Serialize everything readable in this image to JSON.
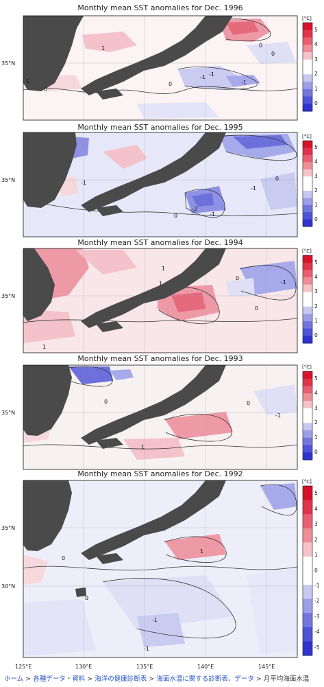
{
  "unit_label": "[°C]",
  "colorbar_ticks": [
    "5",
    "4",
    "3",
    "2",
    "1",
    "0",
    "-1",
    "-2",
    "-3",
    "-4",
    "-5"
  ],
  "panels": [
    {
      "title": "Monthly mean SST anomalies for Dec. 1996",
      "lat_labels": [
        "35°N"
      ],
      "contour_labels": [
        "1",
        "-1",
        "0",
        "-1",
        "-1",
        "0",
        "0",
        "1",
        "0"
      ]
    },
    {
      "title": "Monthly mean SST anomalies for Dec. 1995",
      "lat_labels": [
        "35°N"
      ],
      "contour_labels": [
        "-1",
        "0",
        "-2",
        "-1",
        "-1",
        "0"
      ]
    },
    {
      "title": "Monthly mean SST anomalies for Dec. 1994",
      "lat_labels": [
        "35°N"
      ],
      "contour_labels": [
        "0",
        "-1",
        "1",
        "0",
        "1",
        "1"
      ]
    },
    {
      "title": "Monthly mean SST anomalies for Dec. 1993",
      "lat_labels": [
        "35°N"
      ],
      "contour_labels": [
        "1",
        "0",
        "-1",
        "0"
      ]
    },
    {
      "title": "Monthly mean SST anomalies for Dec. 1992",
      "lat_labels": [
        "35°N",
        "30°N"
      ],
      "contour_labels": [
        "0",
        "-1",
        "-1",
        "0",
        "1"
      ]
    }
  ],
  "lon_labels": [
    "125°E",
    "130°E",
    "135°E",
    "140°E",
    "145°E"
  ],
  "breadcrumb": {
    "items": [
      "ホーム",
      "各種データ・資料",
      "海洋の健康診断表",
      "海面水温に関する診断表、データ"
    ],
    "separator": ">",
    "current": "月平均海面水温"
  },
  "colors": {
    "land": "#4a4a4a",
    "warm_light": "#f6d8dc",
    "warm_mid": "#ee9aa6",
    "warm_strong": "#e03a4e",
    "cool_light": "#dfe0f6",
    "cool_mid": "#a7aaea",
    "cool_strong": "#4b4fd6",
    "link": "#2a56c6"
  }
}
